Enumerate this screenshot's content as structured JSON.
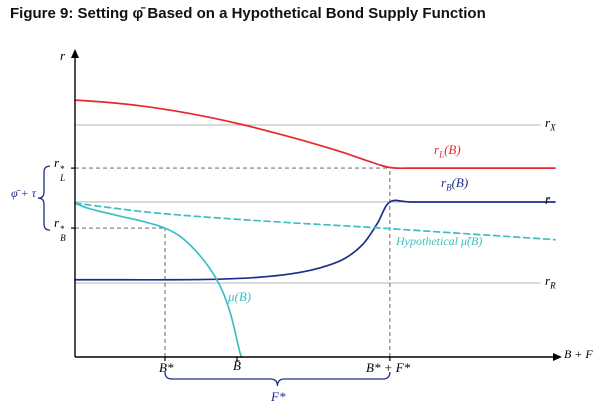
{
  "title": "Figure 9: Setting φ̄ Based on a Hypothetical Bond Supply Function",
  "colors": {
    "red": "#e8272c",
    "navy": "#1f2e8c",
    "cyan": "#3dbfc2",
    "gray": "#b3b3b3",
    "guide": "#555555",
    "axis": "#000000"
  },
  "labels": {
    "y_axis": "r",
    "x_axis": "B + F",
    "r_X": {
      "base": "r",
      "sub": "X"
    },
    "r_bar": "r̄",
    "r_R": {
      "base": "r",
      "sub": "R"
    },
    "r_L_star": {
      "base": "r",
      "sup": "*",
      "sub": "L"
    },
    "r_B_star": {
      "base": "r",
      "sup": "*",
      "sub": "B"
    },
    "phi_tau": "φ̄ + τ",
    "B_star": "B*",
    "B_bar": "B̄",
    "B_F_star": "B* + F*",
    "F_star": "F*",
    "curve_rL": {
      "base": "r",
      "sub": "L",
      "post": "(B)"
    },
    "curve_rB": {
      "base": "r",
      "sub": "B",
      "post": "(B)"
    },
    "curve_mu": "μ(B)",
    "curve_mu_hyp": "Hypothetical μ̃(B)"
  },
  "chart_data": {
    "type": "line",
    "title": "Figure 9: Setting φ̄ Based on a Hypothetical Bond Supply Function",
    "xlabel": "B + F",
    "ylabel": "r",
    "xlim": [
      0,
      10
    ],
    "ylim": [
      0,
      10
    ],
    "grid": false,
    "legend_position": "inline-annotations",
    "reference_lines_horizontal": [
      {
        "name": "r_X",
        "y": 7.81
      },
      {
        "name": "r_bar",
        "y": 5.22
      },
      {
        "name": "r_R",
        "y": 2.49
      }
    ],
    "key_points": {
      "B_star": 1.875,
      "B_bar": 3.375,
      "B_star_plus_F_star": 6.56,
      "r_L_star": 6.36,
      "r_B_star": 4.34
    },
    "series": [
      {
        "name": "r_L(B)",
        "color": "red",
        "dash": false,
        "points": [
          [
            0,
            8.65
          ],
          [
            0.7,
            8.57
          ],
          [
            1.4,
            8.45
          ],
          [
            2.1,
            8.28
          ],
          [
            2.8,
            8.07
          ],
          [
            3.5,
            7.82
          ],
          [
            4.2,
            7.53
          ],
          [
            4.9,
            7.22
          ],
          [
            5.6,
            6.88
          ],
          [
            6.1,
            6.6
          ],
          [
            6.56,
            6.38
          ],
          [
            7.0,
            6.36
          ],
          [
            8.0,
            6.36
          ],
          [
            9.0,
            6.36
          ],
          [
            10,
            6.36
          ]
        ]
      },
      {
        "name": "r_B(B)",
        "color": "navy",
        "dash": false,
        "points": [
          [
            0,
            2.6
          ],
          [
            1,
            2.6
          ],
          [
            2,
            2.6
          ],
          [
            3,
            2.62
          ],
          [
            3.8,
            2.68
          ],
          [
            4.5,
            2.8
          ],
          [
            5.1,
            3.0
          ],
          [
            5.6,
            3.3
          ],
          [
            6.0,
            3.8
          ],
          [
            6.3,
            4.5
          ],
          [
            6.56,
            5.22
          ],
          [
            7.0,
            5.22
          ],
          [
            8.0,
            5.22
          ],
          [
            9.0,
            5.22
          ],
          [
            10,
            5.22
          ]
        ]
      },
      {
        "name": "μ(B)",
        "color": "cyan",
        "dash": false,
        "points": [
          [
            0,
            5.18
          ],
          [
            0.25,
            5.02
          ],
          [
            0.6,
            4.87
          ],
          [
            1.0,
            4.72
          ],
          [
            1.45,
            4.55
          ],
          [
            1.875,
            4.34
          ],
          [
            2.2,
            4.05
          ],
          [
            2.5,
            3.6
          ],
          [
            2.8,
            3.0
          ],
          [
            3.05,
            2.3
          ],
          [
            3.25,
            1.4
          ],
          [
            3.42,
            0.25
          ],
          [
            3.47,
            0
          ]
        ]
      },
      {
        "name": "Hypothetical μ̃(B)",
        "color": "cyan",
        "dash": true,
        "points": [
          [
            0,
            5.18
          ],
          [
            1.5,
            4.88
          ],
          [
            3,
            4.68
          ],
          [
            4.5,
            4.52
          ],
          [
            6,
            4.38
          ],
          [
            7.5,
            4.22
          ],
          [
            9,
            4.06
          ],
          [
            10,
            3.95
          ]
        ]
      }
    ],
    "guides": [
      {
        "type": "h",
        "y": 6.36,
        "x1": 0,
        "x2": 6.56
      },
      {
        "type": "v",
        "x": 6.56,
        "y1": 0,
        "y2": 6.36
      },
      {
        "type": "h",
        "y": 4.34,
        "x1": 0,
        "x2": 1.875
      },
      {
        "type": "v",
        "x": 1.875,
        "y1": 0,
        "y2": 4.34
      }
    ],
    "braces": [
      {
        "orient": "left",
        "from_y": 6.36,
        "to_y": 4.34,
        "label": "φ̄ + τ"
      },
      {
        "orient": "bottom",
        "from_x": 1.875,
        "to_x": 6.56,
        "label": "F*"
      }
    ],
    "x_tick_labels": [
      "B*",
      "B̄",
      "B* + F*"
    ],
    "y_tick_labels": [
      "r_L*",
      "r_B*"
    ],
    "right_axis_labels": [
      "r_X",
      "r̄",
      "r_R"
    ]
  }
}
